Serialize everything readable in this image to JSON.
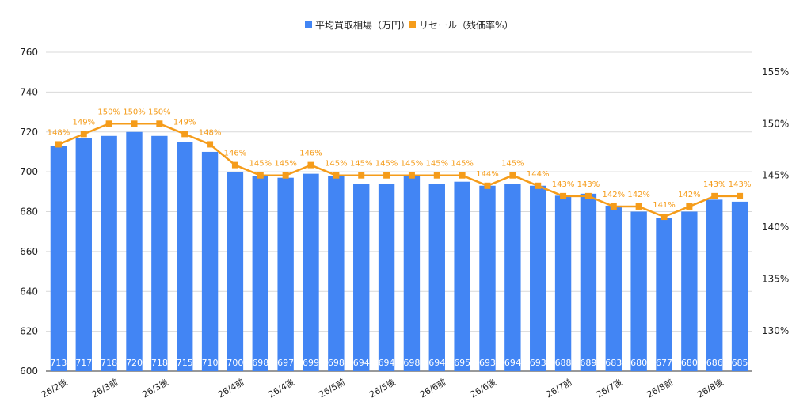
{
  "colors": {
    "bar": "#4285f4",
    "line": "#f59c1a",
    "grid": "#d9d9d9",
    "baseline": "#333333"
  },
  "chart_data": {
    "type": "bar+line",
    "legend": {
      "placement": "top-center",
      "entries": [
        "平均買取相場（万円）",
        "リセール（残価率%）"
      ]
    },
    "categories": [
      "26/2後",
      "26/3前",
      "26/3前",
      "26/3前",
      "26/3後",
      "26/3後",
      "26/3後",
      "26/4前",
      "26/4前",
      "26/4後",
      "26/4後",
      "26/5前",
      "26/5前",
      "26/5後",
      "26/5後",
      "26/6前",
      "26/6前",
      "26/6後",
      "26/6後",
      "26/6後",
      "26/7前",
      "26/7前",
      "26/7後",
      "26/7後",
      "26/8前",
      "26/8前",
      "26/8後",
      "26/8後"
    ],
    "x_tick_labels": [
      "26/2後",
      "26/3前",
      "26/3後",
      "26/4前",
      "26/4後",
      "26/5前",
      "26/5後",
      "26/6前",
      "26/6後",
      "26/7前",
      "26/7後",
      "26/8前",
      "26/8後"
    ],
    "x_tick_indices": [
      0,
      2,
      4,
      7,
      9,
      11,
      13,
      15,
      17,
      20,
      22,
      24,
      26
    ],
    "series": [
      {
        "name": "平均買取相場（万円）",
        "type": "bar",
        "axis": "left",
        "values": [
          713,
          717,
          718,
          720,
          718,
          715,
          710,
          700,
          698,
          697,
          699,
          698,
          694,
          694,
          698,
          694,
          695,
          693,
          694,
          693,
          688,
          689,
          683,
          680,
          677,
          680,
          686,
          685
        ]
      },
      {
        "name": "リセール（残価率%）",
        "type": "line",
        "axis": "right",
        "values": [
          148,
          149,
          150,
          150,
          150,
          149,
          148,
          146,
          145,
          145,
          146,
          145,
          145,
          145,
          145,
          145,
          145,
          144,
          145,
          144,
          143,
          143,
          142,
          142,
          141,
          142,
          143,
          143
        ]
      }
    ],
    "y_left": {
      "ylim": [
        600,
        760
      ],
      "ticks": [
        600,
        620,
        640,
        660,
        680,
        700,
        720,
        740,
        760
      ]
    },
    "y_right": {
      "ylim": [
        126.1,
        156.9
      ],
      "ticks": [
        130,
        135,
        140,
        145,
        150,
        155
      ],
      "tick_labels": [
        "130%",
        "135%",
        "140%",
        "145%",
        "150%",
        "155%"
      ]
    },
    "grid": true
  }
}
